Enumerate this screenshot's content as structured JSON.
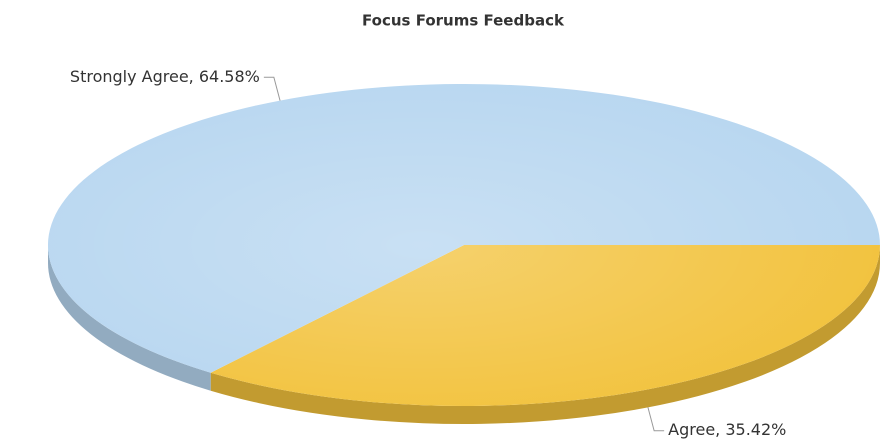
{
  "chart_data": {
    "type": "pie",
    "title": "Focus Forums Feedback",
    "values": [
      64.58,
      35.42
    ],
    "value_labels": [
      "Strongly Agree, 64.58%",
      "Agree, 35.42%"
    ],
    "colors": [
      "#b7d6f0",
      "#f2c23c"
    ]
  }
}
